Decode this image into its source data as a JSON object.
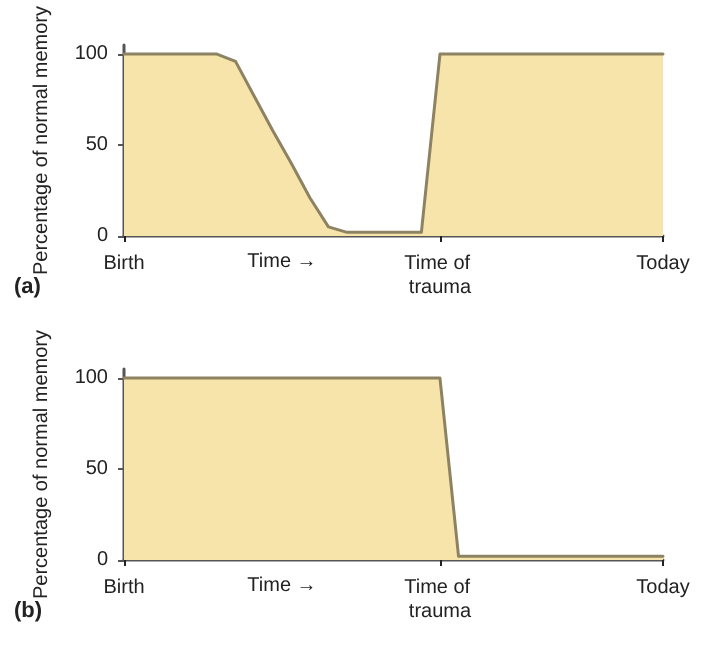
{
  "chart_data": [
    {
      "type": "area",
      "title": "(a)",
      "xlabel": "Time →",
      "ylabel": "Percentage of normal memory",
      "categories": [
        "Birth",
        null,
        null,
        null,
        null,
        null,
        null,
        null,
        null,
        null,
        null,
        null,
        null,
        null,
        null,
        null,
        null,
        "Time of trauma",
        null,
        null,
        null,
        null,
        null,
        null,
        null,
        null,
        null,
        null,
        null,
        "Today"
      ],
      "series": [
        {
          "color": "#f7e4aa",
          "values": [
            100,
            100,
            100,
            100,
            100,
            100,
            96,
            77,
            58,
            40,
            21,
            5,
            2,
            2,
            2,
            2,
            2,
            100,
            100,
            100,
            100,
            100,
            100,
            100,
            100,
            100,
            100,
            100,
            100,
            100
          ]
        }
      ],
      "ylim": [
        0,
        105
      ],
      "yticks": [
        0,
        50,
        100
      ],
      "grid": false,
      "marker": "none",
      "line_style": "solid"
    },
    {
      "type": "area",
      "title": "(b)",
      "xlabel": "Time →",
      "ylabel": "Percentage of normal memory",
      "categories": [
        "Birth",
        null,
        null,
        null,
        null,
        null,
        null,
        null,
        null,
        null,
        null,
        null,
        null,
        null,
        null,
        null,
        null,
        "Time of trauma",
        null,
        null,
        null,
        null,
        null,
        null,
        null,
        null,
        null,
        null,
        null,
        "Today"
      ],
      "series": [
        {
          "color": "#f7e4aa",
          "values": [
            100,
            100,
            100,
            100,
            100,
            100,
            100,
            100,
            100,
            100,
            100,
            100,
            100,
            100,
            100,
            100,
            100,
            100,
            2,
            2,
            2,
            2,
            2,
            2,
            2,
            2,
            2,
            2,
            2,
            2
          ]
        }
      ],
      "ylim": [
        0,
        105
      ],
      "yticks": [
        0,
        50,
        100
      ],
      "grid": false,
      "marker": "none",
      "line_style": "solid"
    }
  ]
}
